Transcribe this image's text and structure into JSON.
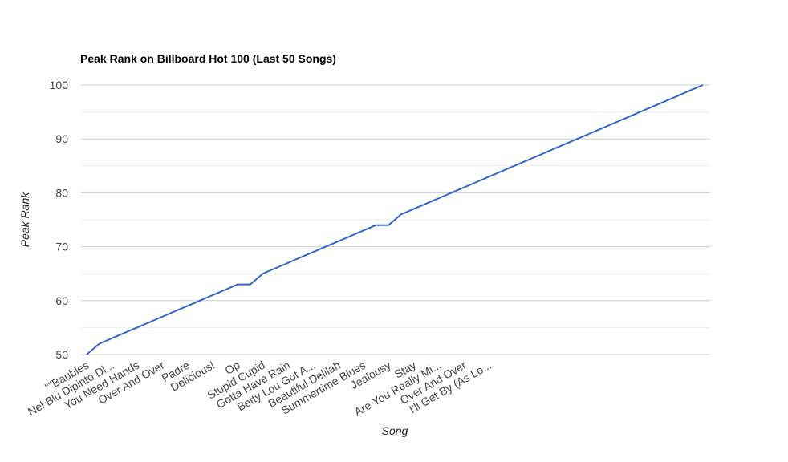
{
  "chart_data": {
    "type": "line",
    "title": "Peak Rank on Billboard Hot 100 (Last 50 Songs)",
    "xlabel": "Song",
    "ylabel": "Peak Rank",
    "ylim": [
      50,
      100
    ],
    "yticks": [
      50,
      60,
      70,
      80,
      90,
      100
    ],
    "grid": true,
    "legend": "none",
    "line_color": "#3366cc",
    "categories": [
      "\"\"Baubles",
      "",
      "Nel Blu Dipinto Di...",
      "",
      "You Need Hands",
      "",
      "Over And Over",
      "",
      "Padre",
      "",
      "Delicious!",
      "",
      "Op",
      "",
      "Stupid Cupid",
      "",
      "Gotta Have Rain",
      "",
      "Betty Lou Got A...",
      "",
      "Beautiful Delilah",
      "",
      "Summertime Blues",
      "",
      "Jealousy",
      "",
      "Stay",
      "",
      "Are You Really Mi...",
      "",
      "Over And Over",
      "",
      "I'll Get By (As Lo...",
      "",
      "",
      "",
      "",
      "",
      "",
      "",
      "",
      "",
      "",
      "",
      "",
      "",
      "",
      "",
      "",
      ""
    ],
    "x_tick_labels": [
      "\"\"Baubles",
      "Nel Blu Dipinto Di...",
      "You Need Hands",
      "Over And Over",
      "Padre",
      "Delicious!",
      "Op",
      "Stupid Cupid",
      "Gotta Have Rain",
      "Betty Lou Got A...",
      "Beautiful Delilah",
      "Summertime Blues",
      "Jealousy",
      "Stay",
      "Are You Really Mi...",
      "Over And Over",
      "I'll Get By (As Lo..."
    ],
    "series": [
      {
        "values": [
          50,
          52,
          53,
          54,
          55,
          56,
          57,
          58,
          59,
          60,
          61,
          62,
          63,
          63,
          65,
          66,
          67,
          68,
          69,
          70,
          71,
          72,
          73,
          74,
          74,
          76,
          77,
          78,
          79,
          80,
          81,
          82,
          83,
          84,
          85,
          86,
          87,
          88,
          89,
          90,
          91,
          92,
          93,
          94,
          95,
          96,
          97,
          98,
          99,
          100
        ]
      }
    ]
  }
}
